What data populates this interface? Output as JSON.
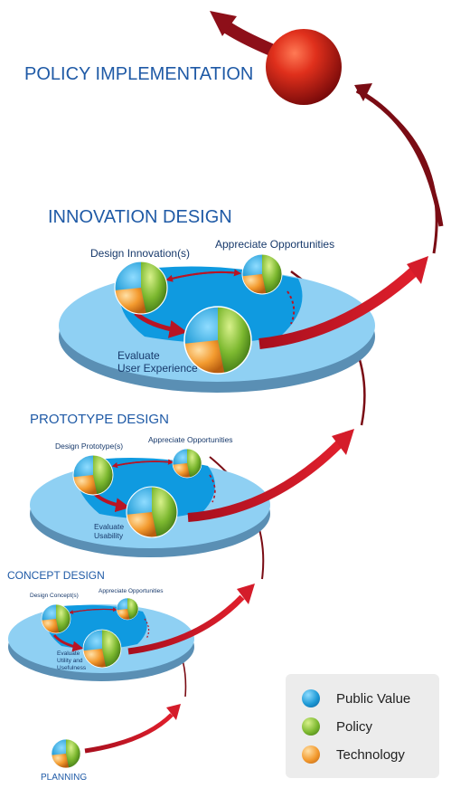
{
  "titles": {
    "policy_implementation": "POLICY IMPLEMENTATION",
    "innovation_design": "INNOVATION DESIGN",
    "prototype_design": "PROTOTYPE DESIGN",
    "concept_design": "CONCEPT DESIGN",
    "planning": "PLANNING"
  },
  "innovation": {
    "design": "Design Innovation(s)",
    "appreciate": "Appreciate Opportunities",
    "evaluate_line1": "Evaluate",
    "evaluate_line2": "User Experience"
  },
  "prototype": {
    "design": "Design Prototype(s)",
    "appreciate": "Appreciate Opportunities",
    "evaluate_line1": "Evaluate",
    "evaluate_line2": "Usability"
  },
  "concept": {
    "design": "Design Concept(s)",
    "appreciate": "Appreciate Opportunities",
    "evaluate_line1": "Evaluate",
    "evaluate_line2": "Utility and",
    "evaluate_line3": "Usefulness"
  },
  "legend": {
    "items": [
      {
        "label": "Public Value",
        "color": "#1e9ad6"
      },
      {
        "label": "Policy",
        "color": "#7cb82f"
      },
      {
        "label": "Technology",
        "color": "#f39a2e"
      }
    ]
  },
  "colors": {
    "title": "#1f5aa6",
    "arrow": "#cc1a2a",
    "disc_top": "#8fd0f3",
    "disc_pool": "#0f9ae0",
    "disc_side": "#5a8fb4"
  }
}
